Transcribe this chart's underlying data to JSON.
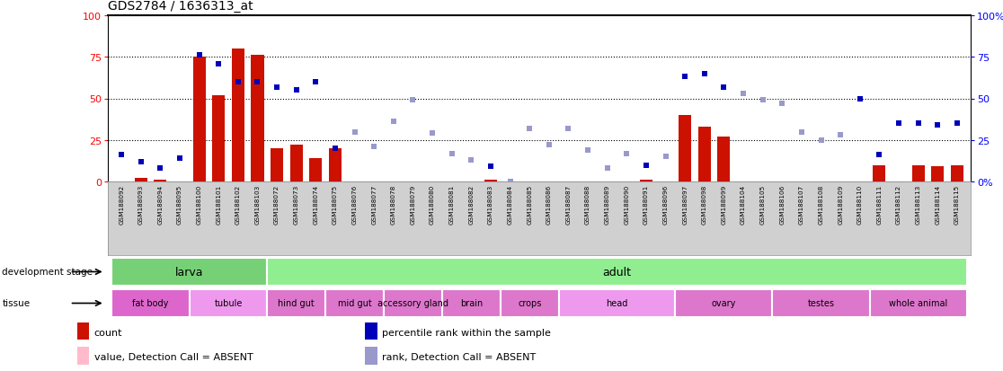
{
  "title": "GDS2784 / 1636313_at",
  "samples": [
    "GSM188092",
    "GSM188093",
    "GSM188094",
    "GSM188095",
    "GSM188100",
    "GSM188101",
    "GSM188102",
    "GSM188103",
    "GSM188072",
    "GSM188073",
    "GSM188074",
    "GSM188075",
    "GSM188076",
    "GSM188077",
    "GSM188078",
    "GSM188079",
    "GSM188080",
    "GSM188081",
    "GSM188082",
    "GSM188083",
    "GSM188084",
    "GSM188085",
    "GSM188086",
    "GSM188087",
    "GSM188088",
    "GSM188089",
    "GSM188090",
    "GSM188091",
    "GSM188096",
    "GSM188097",
    "GSM188098",
    "GSM188099",
    "GSM188104",
    "GSM188105",
    "GSM188106",
    "GSM188107",
    "GSM188108",
    "GSM188109",
    "GSM188110",
    "GSM188111",
    "GSM188112",
    "GSM188113",
    "GSM188114",
    "GSM188115"
  ],
  "count_values": [
    0,
    2,
    1,
    0,
    75,
    52,
    80,
    76,
    20,
    22,
    14,
    20,
    0,
    0,
    0,
    0,
    0,
    0,
    0,
    1,
    0,
    0,
    0,
    0,
    0,
    0,
    0,
    1,
    0,
    40,
    33,
    27,
    0,
    0,
    0,
    0,
    0,
    0,
    0,
    10,
    0,
    10,
    9,
    10
  ],
  "count_absent": [
    false,
    false,
    false,
    false,
    false,
    false,
    false,
    false,
    false,
    false,
    false,
    false,
    true,
    true,
    true,
    true,
    true,
    true,
    true,
    false,
    true,
    true,
    true,
    true,
    true,
    true,
    true,
    false,
    true,
    false,
    false,
    false,
    true,
    true,
    true,
    true,
    true,
    true,
    true,
    false,
    true,
    false,
    false,
    false
  ],
  "rank_values": [
    16,
    12,
    8,
    14,
    76,
    71,
    60,
    60,
    57,
    55,
    60,
    20,
    30,
    21,
    36,
    49,
    29,
    17,
    13,
    9,
    0,
    32,
    22,
    32,
    19,
    8,
    17,
    10,
    15,
    63,
    65,
    57,
    53,
    49,
    47,
    30,
    25,
    28,
    50,
    16,
    35,
    35,
    34,
    35
  ],
  "rank_absent": [
    false,
    false,
    false,
    false,
    false,
    false,
    false,
    false,
    false,
    false,
    false,
    false,
    true,
    true,
    true,
    true,
    true,
    true,
    true,
    false,
    true,
    true,
    true,
    true,
    true,
    true,
    true,
    false,
    true,
    false,
    false,
    false,
    true,
    true,
    true,
    true,
    true,
    true,
    false,
    false,
    false,
    false,
    false,
    false
  ],
  "development_groups": [
    {
      "label": "larva",
      "start": 0,
      "end": 8,
      "color": "#76d176"
    },
    {
      "label": "adult",
      "start": 8,
      "end": 44,
      "color": "#90ee90"
    }
  ],
  "tissue_groups": [
    {
      "label": "fat body",
      "start": 0,
      "end": 4,
      "color": "#dd66cc"
    },
    {
      "label": "tubule",
      "start": 4,
      "end": 8,
      "color": "#ee99ee"
    },
    {
      "label": "hind gut",
      "start": 8,
      "end": 11,
      "color": "#dd77cc"
    },
    {
      "label": "mid gut",
      "start": 11,
      "end": 14,
      "color": "#dd77cc"
    },
    {
      "label": "accessory gland",
      "start": 14,
      "end": 17,
      "color": "#dd77cc"
    },
    {
      "label": "brain",
      "start": 17,
      "end": 20,
      "color": "#dd77cc"
    },
    {
      "label": "crops",
      "start": 20,
      "end": 23,
      "color": "#dd77cc"
    },
    {
      "label": "head",
      "start": 23,
      "end": 29,
      "color": "#ee99ee"
    },
    {
      "label": "ovary",
      "start": 29,
      "end": 34,
      "color": "#dd77cc"
    },
    {
      "label": "testes",
      "start": 34,
      "end": 39,
      "color": "#dd77cc"
    },
    {
      "label": "whole animal",
      "start": 39,
      "end": 44,
      "color": "#dd77cc"
    }
  ],
  "bar_color_present": "#cc1100",
  "bar_color_absent": "#ffbbcc",
  "rank_color_present": "#0000bb",
  "rank_color_absent": "#9999cc",
  "ylim": [
    0,
    100
  ],
  "yticks": [
    0,
    25,
    50,
    75,
    100
  ],
  "dotted_lines": [
    25,
    50,
    75
  ],
  "legend_items": [
    {
      "label": "count",
      "color": "#cc1100"
    },
    {
      "label": "percentile rank within the sample",
      "color": "#0000bb"
    },
    {
      "label": "value, Detection Call = ABSENT",
      "color": "#ffbbcc"
    },
    {
      "label": "rank, Detection Call = ABSENT",
      "color": "#9999cc"
    }
  ]
}
